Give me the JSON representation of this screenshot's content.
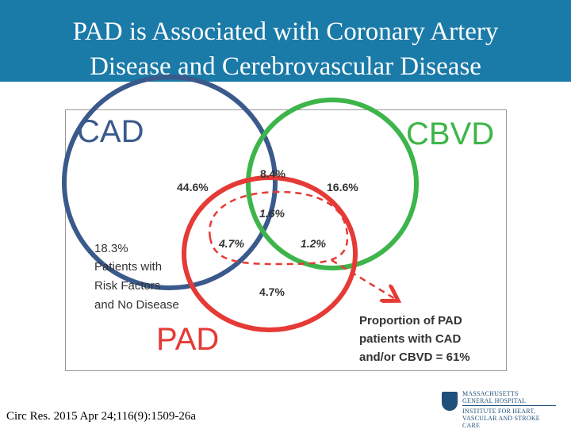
{
  "slide": {
    "title_line1": "PAD is Associated with Coronary Artery",
    "title_line2": "Disease and Cerebrovascular Disease",
    "citation": "Circ Res. 2015 Apr 24;116(9):1509-26a"
  },
  "diagram": {
    "sets": {
      "cad": {
        "label": "CAD",
        "color": "#3a5a8c"
      },
      "cbvd": {
        "label": "CBVD",
        "color": "#3db54a"
      },
      "pad": {
        "label": "PAD",
        "color": "#e53a35"
      }
    },
    "regions": {
      "cad_only": "44.6%",
      "cad_cbvd": "8.4%",
      "cbvd_only": "16.6%",
      "all_three": "1.6%",
      "cad_pad": "4.7%",
      "cbvd_pad": "1.2%",
      "pad_only": "4.7%"
    },
    "no_disease": {
      "value": "18.3%",
      "line1": "Patients with",
      "line2": "Risk Factors",
      "line3": "and No Disease"
    },
    "callout": {
      "line1": "Proportion of PAD",
      "line2": "patients with CAD",
      "line3": "and/or CBVD = 61%"
    }
  },
  "logo": {
    "line1": "MASSACHUSETTS",
    "line2": "GENERAL HOSPITAL",
    "line3": "INSTITUTE FOR HEART,",
    "line4": "VASCULAR AND STROKE CARE"
  }
}
